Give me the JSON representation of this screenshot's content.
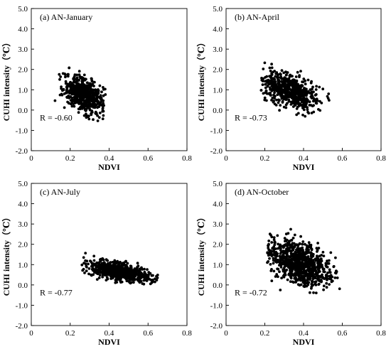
{
  "chart_data": [
    {
      "type": "scatter",
      "panel_label": "(a) AN-January",
      "xlabel": "NDVI",
      "ylabel": "CUHI intensity（℃）",
      "xlim": [
        0,
        0.8
      ],
      "ylim": [
        -2.0,
        5.0
      ],
      "xticks": [
        "0",
        "0.2",
        "0.4",
        "0.6",
        "0.8"
      ],
      "yticks": [
        "-2.0",
        "-1.0",
        "0.0",
        "1.0",
        "2.0",
        "3.0",
        "4.0",
        "5.0"
      ],
      "annotation": "R = -0.60",
      "point_model": {
        "n": 600,
        "x_mean": 0.27,
        "x_sd": 0.05,
        "x_min": 0.11,
        "x_max": 0.4,
        "slope": -8.0,
        "y_at_mean": 0.75,
        "y_sd": 0.42,
        "y_min": -0.6,
        "y_max": 2.8
      }
    },
    {
      "type": "scatter",
      "panel_label": "(b) AN-April",
      "xlabel": "NDVI",
      "ylabel": "CUHI intensity（℃）",
      "xlim": [
        0,
        0.8
      ],
      "ylim": [
        -2.0,
        5.0
      ],
      "xticks": [
        "0",
        "0.2",
        "0.4",
        "0.6",
        "0.8"
      ],
      "yticks": [
        "-2.0",
        "-1.0",
        "0.0",
        "1.0",
        "2.0",
        "3.0",
        "4.0",
        "5.0"
      ],
      "annotation": "R = -0.73",
      "point_model": {
        "n": 600,
        "x_mean": 0.33,
        "x_sd": 0.07,
        "x_min": 0.18,
        "x_max": 0.55,
        "slope": -6.2,
        "y_at_mean": 0.95,
        "y_sd": 0.4,
        "y_min": -0.5,
        "y_max": 2.8
      }
    },
    {
      "type": "scatter",
      "panel_label": "(c) AN-July",
      "xlabel": "NDVI",
      "ylabel": "CUHI intensity（℃）",
      "xlim": [
        0,
        0.8
      ],
      "ylim": [
        -2.0,
        5.0
      ],
      "xticks": [
        "0",
        "0.2",
        "0.4",
        "0.6",
        "0.8"
      ],
      "yticks": [
        "-2.0",
        "-1.0",
        "0.0",
        "1.0",
        "2.0",
        "3.0",
        "4.0",
        "5.0"
      ],
      "annotation": "R = -0.77",
      "point_model": {
        "n": 700,
        "x_mean": 0.45,
        "x_sd": 0.08,
        "x_min": 0.26,
        "x_max": 0.68,
        "slope": -3.6,
        "y_at_mean": 0.65,
        "y_sd": 0.2,
        "y_min": -0.5,
        "y_max": 1.7
      }
    },
    {
      "type": "scatter",
      "panel_label": "(d) AN-October",
      "xlabel": "NDVI",
      "ylabel": "CUHI intensity（℃）",
      "xlim": [
        0,
        0.8
      ],
      "ylim": [
        -2.0,
        5.0
      ],
      "xticks": [
        "0",
        "0.2",
        "0.4",
        "0.6",
        "0.8"
      ],
      "yticks": [
        "-2.0",
        "-1.0",
        "0.0",
        "1.0",
        "2.0",
        "3.0",
        "4.0",
        "5.0"
      ],
      "annotation": "R = -0.72",
      "point_model": {
        "n": 900,
        "x_mean": 0.38,
        "x_sd": 0.08,
        "x_min": 0.21,
        "x_max": 0.59,
        "slope": -5.8,
        "y_at_mean": 1.1,
        "y_sd": 0.5,
        "y_min": -0.4,
        "y_max": 3.5
      }
    }
  ]
}
